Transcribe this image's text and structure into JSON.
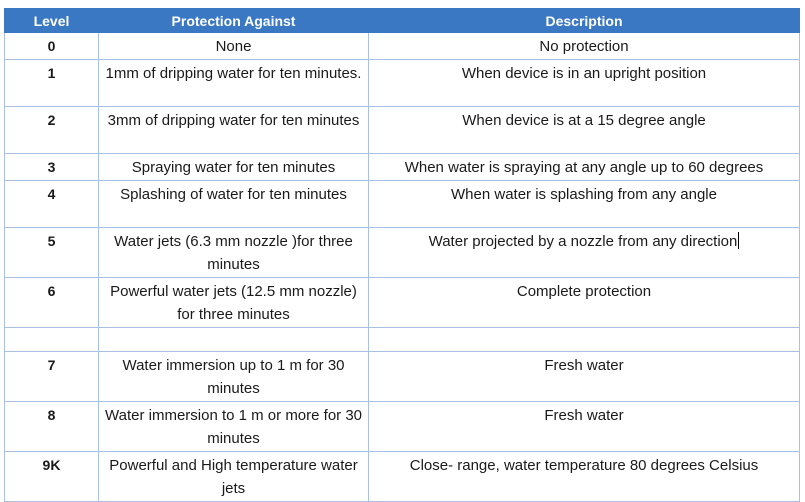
{
  "table": {
    "headers": {
      "level": "Level",
      "protection": "Protection Against",
      "description": "Description"
    },
    "rows": [
      {
        "level": "0",
        "protection": "None",
        "description": "No protection"
      },
      {
        "level": "1",
        "protection": "1mm of dripping water for ten minutes.",
        "description": "When device is in an upright position"
      },
      {
        "level": "2",
        "protection": "3mm of dripping water for ten minutes",
        "description": "When device is at a 15 degree angle"
      },
      {
        "level": "3",
        "protection": "Spraying water for ten minutes",
        "description": "When water is spraying at any angle up to 60 degrees"
      },
      {
        "level": "4",
        "protection": "Splashing of water for ten minutes",
        "description": "When water is splashing from any angle"
      },
      {
        "level": "5",
        "protection": "Water jets (6.3 mm nozzle )for three minutes",
        "description": "Water projected by a nozzle from any direction"
      },
      {
        "level": "6",
        "protection": "Powerful water jets (12.5 mm nozzle) for three minutes",
        "description": "Complete protection"
      },
      {
        "level": "",
        "protection": "",
        "description": ""
      },
      {
        "level": "7",
        "protection": "Water immersion up to 1 m for 30 minutes",
        "description": "Fresh water"
      },
      {
        "level": "8",
        "protection": "Water immersion to 1 m or more for 30 minutes",
        "description": "Fresh water"
      },
      {
        "level": "9K",
        "protection": "Powerful and High temperature water jets",
        "description": "Close- range, water temperature 80 degrees Celsius"
      }
    ]
  }
}
